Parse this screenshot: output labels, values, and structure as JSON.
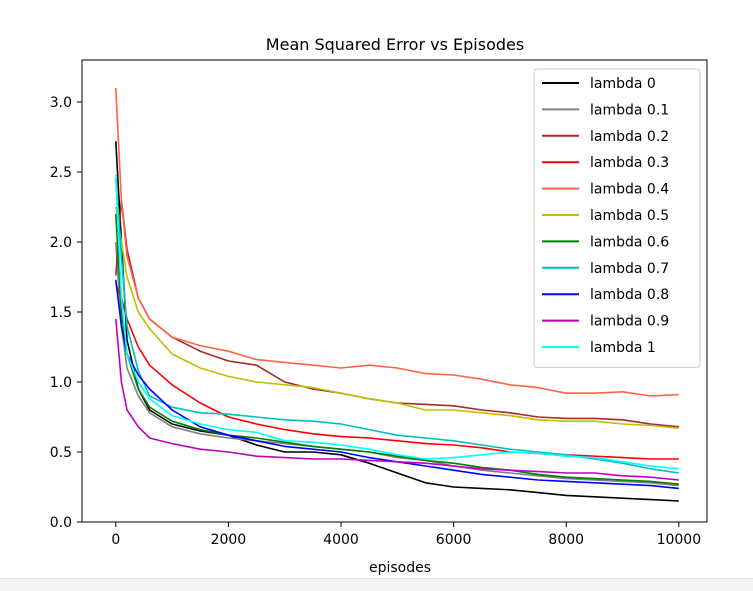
{
  "chart_data": {
    "type": "line",
    "title": "Mean Squared Error vs Episodes",
    "xlabel": "episodes",
    "ylabel": "",
    "xlim": [
      -600,
      10500
    ],
    "ylim": [
      0.0,
      3.3
    ],
    "x_ticks": [
      0,
      2000,
      4000,
      6000,
      8000,
      10000
    ],
    "y_ticks": [
      0.0,
      0.5,
      1.0,
      1.5,
      2.0,
      2.5,
      3.0
    ],
    "x_tick_labels": [
      "0",
      "2000",
      "4000",
      "6000",
      "8000",
      "10000"
    ],
    "y_tick_labels": [
      "0.0",
      "0.5",
      "1.0",
      "1.5",
      "2.0",
      "2.5",
      "3.0"
    ],
    "grid": false,
    "legend_position": "top-right",
    "series": [
      {
        "name": "lambda 0",
        "color": "#000000",
        "x": [
          0,
          100,
          200,
          400,
          600,
          1000,
          1500,
          2000,
          2500,
          3000,
          3500,
          4000,
          4500,
          5000,
          5500,
          6000,
          6500,
          7000,
          7500,
          8000,
          8500,
          9000,
          9500,
          10000
        ],
        "y": [
          2.72,
          2.0,
          1.3,
          0.95,
          0.8,
          0.7,
          0.65,
          0.62,
          0.55,
          0.5,
          0.5,
          0.48,
          0.42,
          0.35,
          0.28,
          0.25,
          0.24,
          0.23,
          0.21,
          0.19,
          0.18,
          0.17,
          0.16,
          0.15
        ]
      },
      {
        "name": "lambda 0.1",
        "color": "#808080",
        "x": [
          0,
          100,
          200,
          400,
          600,
          1000,
          1500,
          2000,
          2500,
          3000,
          3500,
          4000,
          4500,
          5000,
          5500,
          6000,
          6500,
          7000,
          7500,
          8000,
          8500,
          9000,
          9500,
          10000
        ],
        "y": [
          2.0,
          1.4,
          1.1,
          0.9,
          0.78,
          0.68,
          0.63,
          0.6,
          0.58,
          0.56,
          0.54,
          0.52,
          0.5,
          0.46,
          0.44,
          0.4,
          0.37,
          0.35,
          0.33,
          0.31,
          0.3,
          0.29,
          0.28,
          0.26
        ]
      },
      {
        "name": "lambda 0.2",
        "color": "#a52a2a",
        "x": [
          0,
          100,
          200,
          400,
          600,
          1000,
          1500,
          2000,
          2500,
          3000,
          3500,
          4000,
          4500,
          5000,
          5500,
          6000,
          6500,
          7000,
          7500,
          8000,
          8500,
          9000,
          9500,
          10000
        ],
        "y": [
          1.76,
          2.3,
          1.95,
          1.6,
          1.45,
          1.32,
          1.22,
          1.15,
          1.12,
          1.0,
          0.95,
          0.92,
          0.88,
          0.85,
          0.84,
          0.83,
          0.8,
          0.78,
          0.75,
          0.74,
          0.74,
          0.73,
          0.7,
          0.68
        ]
      },
      {
        "name": "lambda 0.3",
        "color": "#ff0000",
        "x": [
          0,
          100,
          200,
          400,
          600,
          1000,
          1500,
          2000,
          2500,
          3000,
          3500,
          4000,
          4500,
          5000,
          5500,
          6000,
          6500,
          7000,
          7500,
          8000,
          8500,
          9000,
          9500,
          10000
        ],
        "y": [
          1.7,
          1.6,
          1.45,
          1.25,
          1.12,
          0.98,
          0.85,
          0.75,
          0.7,
          0.66,
          0.63,
          0.61,
          0.6,
          0.58,
          0.56,
          0.55,
          0.53,
          0.5,
          0.49,
          0.48,
          0.47,
          0.46,
          0.45,
          0.45
        ]
      },
      {
        "name": "lambda 0.4",
        "color": "#ff6347",
        "x": [
          0,
          100,
          200,
          400,
          600,
          1000,
          1500,
          2000,
          2500,
          3000,
          3500,
          4000,
          4500,
          5000,
          5500,
          6000,
          6500,
          7000,
          7500,
          8000,
          8500,
          9000,
          9500,
          10000
        ],
        "y": [
          3.1,
          2.3,
          1.9,
          1.6,
          1.45,
          1.32,
          1.26,
          1.22,
          1.16,
          1.14,
          1.12,
          1.1,
          1.12,
          1.1,
          1.06,
          1.05,
          1.02,
          0.98,
          0.96,
          0.92,
          0.92,
          0.93,
          0.9,
          0.91
        ]
      },
      {
        "name": "lambda 0.5",
        "color": "#bfbf00",
        "x": [
          0,
          100,
          200,
          400,
          600,
          1000,
          1500,
          2000,
          2500,
          3000,
          3500,
          4000,
          4500,
          5000,
          5500,
          6000,
          6500,
          7000,
          7500,
          8000,
          8500,
          9000,
          9500,
          10000
        ],
        "y": [
          2.25,
          2.0,
          1.75,
          1.5,
          1.38,
          1.2,
          1.1,
          1.04,
          1.0,
          0.98,
          0.96,
          0.92,
          0.88,
          0.85,
          0.8,
          0.8,
          0.78,
          0.76,
          0.73,
          0.72,
          0.72,
          0.7,
          0.69,
          0.67
        ]
      },
      {
        "name": "lambda 0.6",
        "color": "#008000",
        "x": [
          0,
          100,
          200,
          400,
          600,
          1000,
          1500,
          2000,
          2500,
          3000,
          3500,
          4000,
          4500,
          5000,
          5500,
          6000,
          6500,
          7000,
          7500,
          8000,
          8500,
          9000,
          9500,
          10000
        ],
        "y": [
          2.2,
          1.5,
          1.2,
          0.95,
          0.82,
          0.72,
          0.66,
          0.62,
          0.6,
          0.57,
          0.54,
          0.52,
          0.5,
          0.47,
          0.44,
          0.42,
          0.39,
          0.37,
          0.34,
          0.32,
          0.31,
          0.3,
          0.29,
          0.27
        ]
      },
      {
        "name": "lambda 0.7",
        "color": "#00bfbf",
        "x": [
          0,
          100,
          200,
          400,
          600,
          1000,
          1500,
          2000,
          2500,
          3000,
          3500,
          4000,
          4500,
          5000,
          5500,
          6000,
          6500,
          7000,
          7500,
          8000,
          8500,
          9000,
          9500,
          10000
        ],
        "y": [
          2.45,
          1.9,
          1.4,
          1.08,
          0.9,
          0.82,
          0.78,
          0.77,
          0.75,
          0.73,
          0.72,
          0.7,
          0.66,
          0.62,
          0.6,
          0.58,
          0.55,
          0.52,
          0.5,
          0.48,
          0.45,
          0.42,
          0.38,
          0.35
        ]
      },
      {
        "name": "lambda 0.8",
        "color": "#0000ff",
        "x": [
          0,
          100,
          200,
          400,
          600,
          1000,
          1500,
          2000,
          2500,
          3000,
          3500,
          4000,
          4500,
          5000,
          5500,
          6000,
          6500,
          7000,
          7500,
          8000,
          8500,
          9000,
          9500,
          10000
        ],
        "y": [
          1.73,
          1.4,
          1.2,
          1.05,
          0.95,
          0.8,
          0.68,
          0.62,
          0.58,
          0.54,
          0.52,
          0.5,
          0.46,
          0.43,
          0.4,
          0.37,
          0.34,
          0.32,
          0.3,
          0.29,
          0.28,
          0.27,
          0.26,
          0.24
        ]
      },
      {
        "name": "lambda 0.9",
        "color": "#bf00bf",
        "x": [
          0,
          100,
          200,
          400,
          600,
          1000,
          1500,
          2000,
          2500,
          3000,
          3500,
          4000,
          4500,
          5000,
          5500,
          6000,
          6500,
          7000,
          7500,
          8000,
          8500,
          9000,
          9500,
          10000
        ],
        "y": [
          1.45,
          1.0,
          0.8,
          0.68,
          0.6,
          0.56,
          0.52,
          0.5,
          0.47,
          0.46,
          0.45,
          0.45,
          0.44,
          0.43,
          0.42,
          0.4,
          0.38,
          0.37,
          0.36,
          0.35,
          0.35,
          0.33,
          0.32,
          0.3
        ]
      },
      {
        "name": "lambda 1",
        "color": "#00ffff",
        "x": [
          0,
          100,
          200,
          400,
          600,
          1000,
          1500,
          2000,
          2500,
          3000,
          3500,
          4000,
          4500,
          5000,
          5500,
          6000,
          6500,
          7000,
          7500,
          8000,
          8500,
          9000,
          9500,
          10000
        ],
        "y": [
          2.48,
          1.6,
          1.2,
          1.0,
          0.88,
          0.76,
          0.7,
          0.66,
          0.64,
          0.58,
          0.57,
          0.55,
          0.52,
          0.48,
          0.45,
          0.46,
          0.48,
          0.5,
          0.49,
          0.47,
          0.46,
          0.43,
          0.4,
          0.38
        ]
      }
    ]
  }
}
